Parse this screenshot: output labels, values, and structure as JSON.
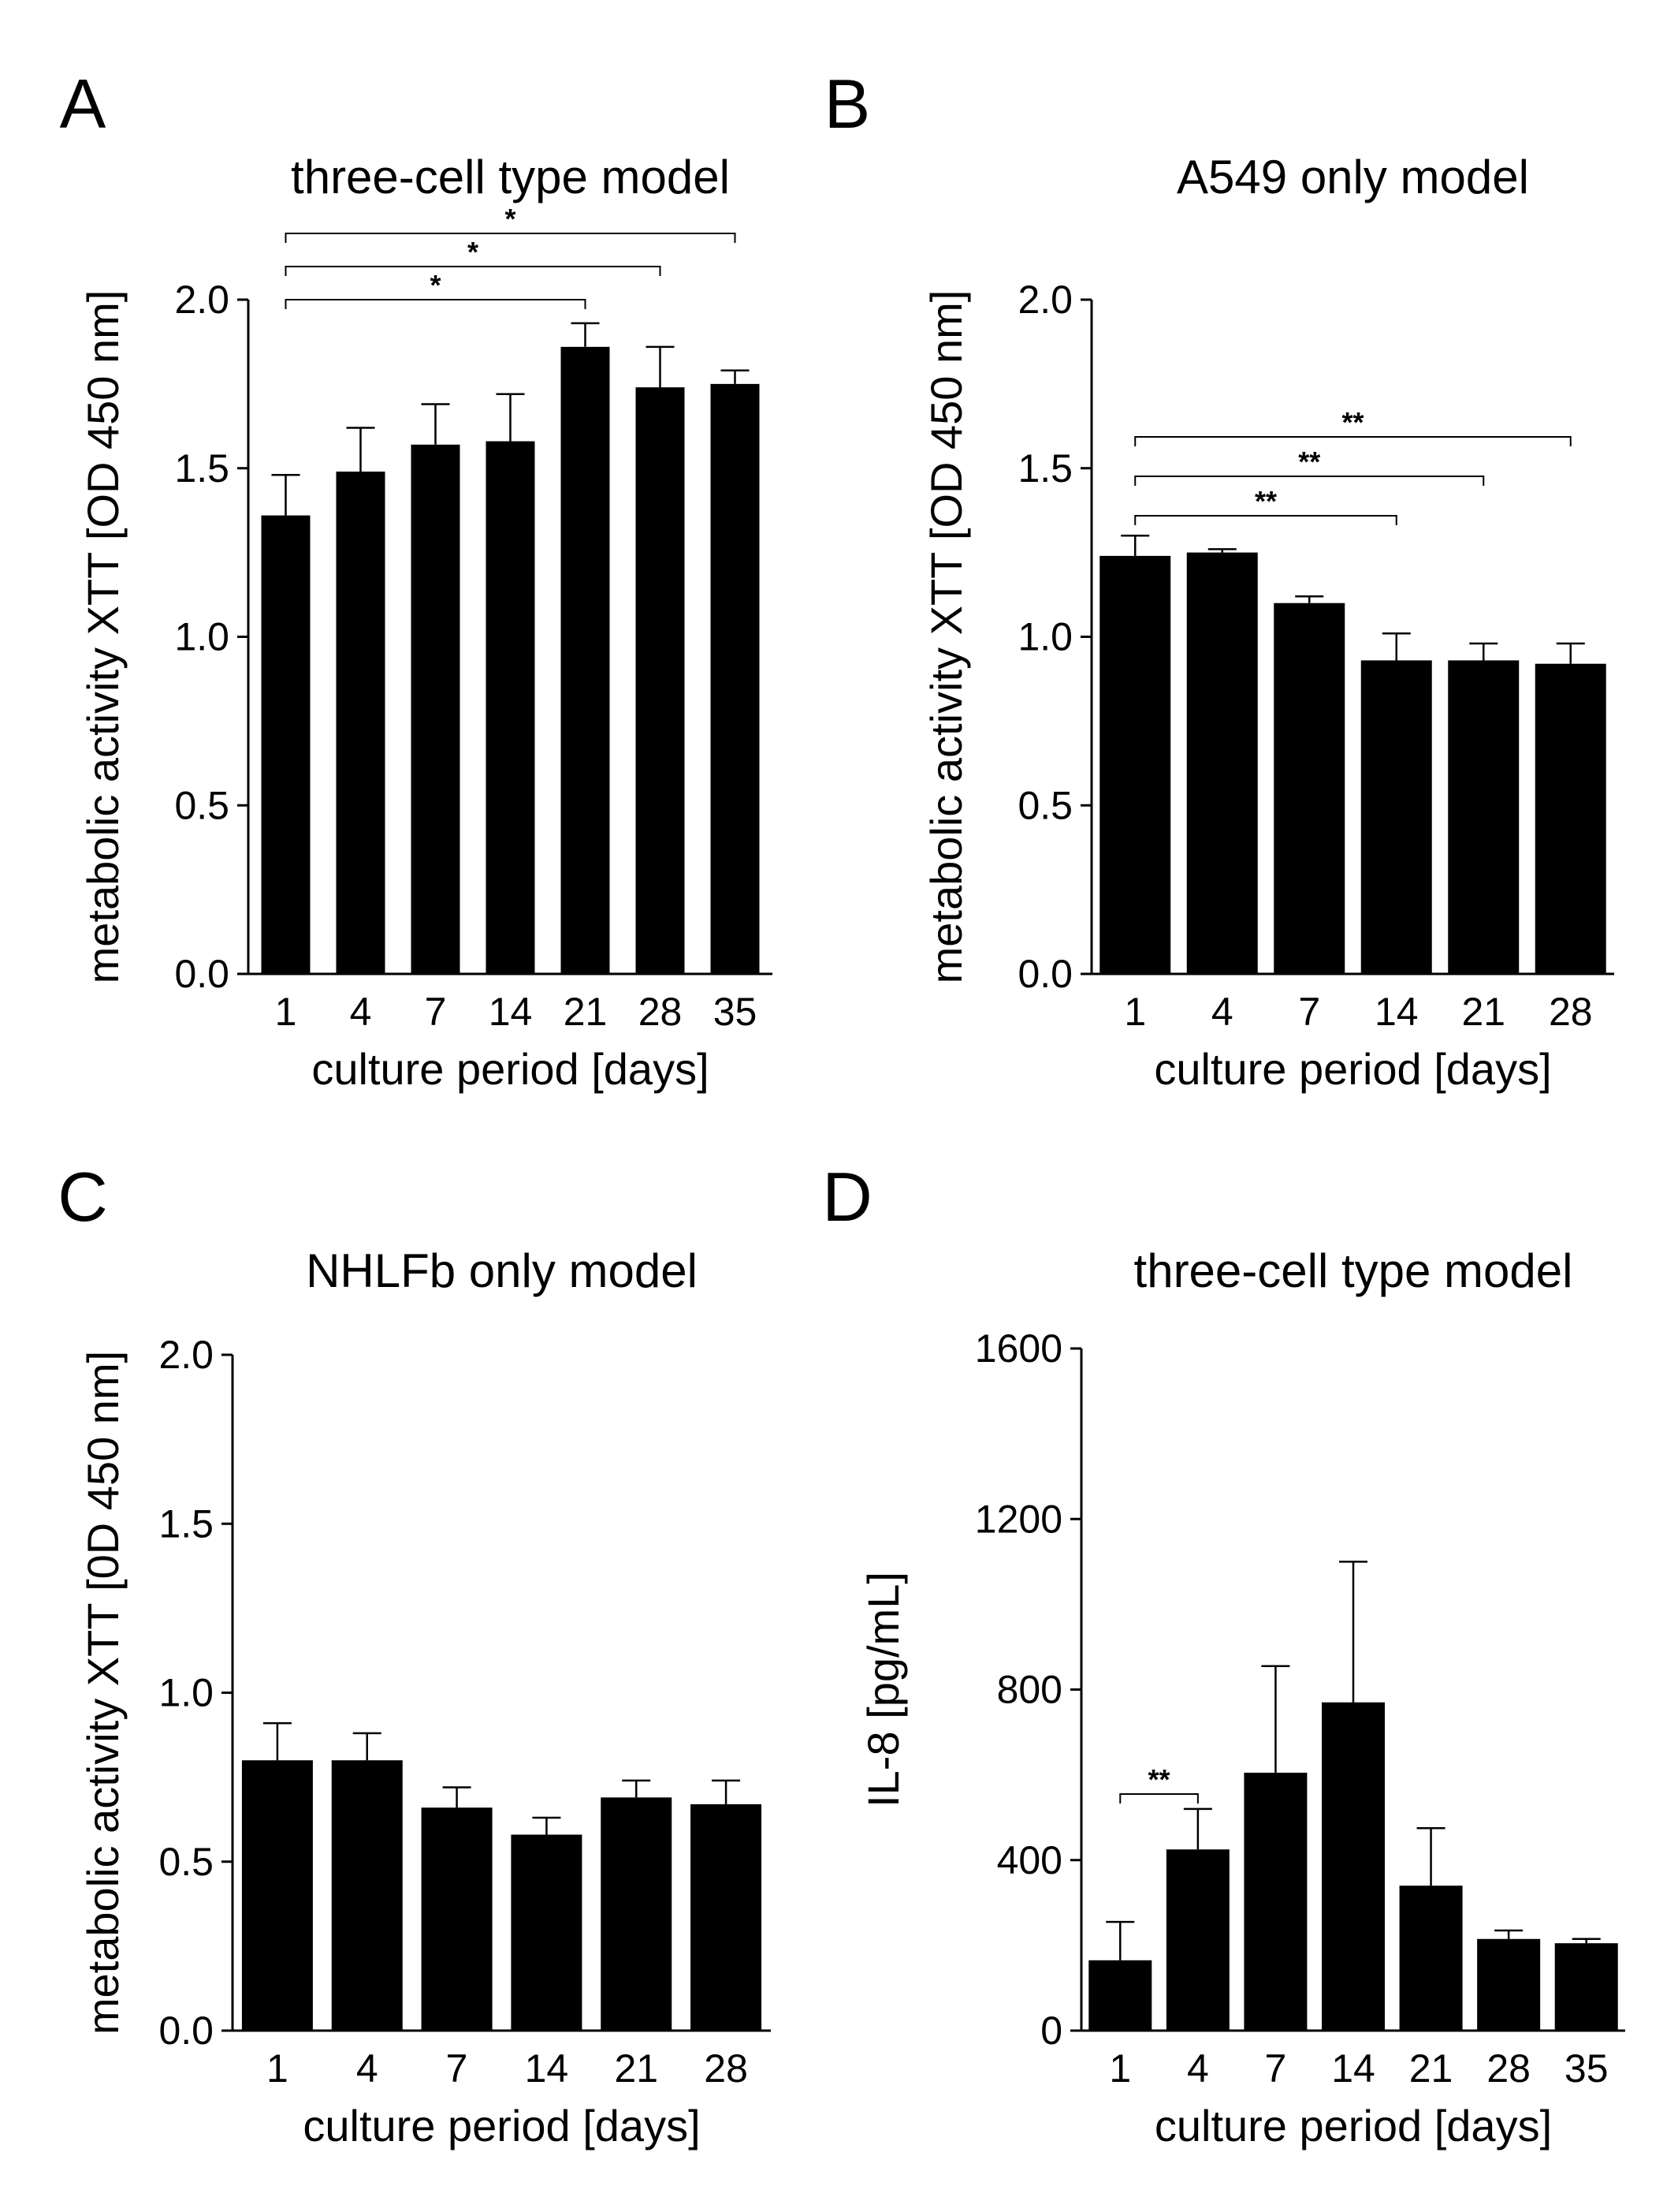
{
  "chart_data": [
    {
      "panel": "A",
      "type": "bar",
      "title": "three-cell type model",
      "xlabel": "culture period [days]",
      "ylabel": "metabolic activity XTT [OD 450 nm]",
      "ylim": [
        0,
        2.0
      ],
      "yticks": [
        0.0,
        0.5,
        1.0,
        1.5,
        2.0
      ],
      "ytick_labels": [
        "0.0",
        "0.5",
        "1.0",
        "1.5",
        "2.0"
      ],
      "categories": [
        "1",
        "4",
        "7",
        "14",
        "21",
        "28",
        "35"
      ],
      "values": [
        1.36,
        1.49,
        1.57,
        1.58,
        1.86,
        1.74,
        1.75
      ],
      "errors": [
        0.12,
        0.13,
        0.12,
        0.14,
        0.07,
        0.12,
        0.04
      ],
      "significance": [
        {
          "from": 0,
          "to": 4,
          "label": "*"
        },
        {
          "from": 0,
          "to": 5,
          "label": "*"
        },
        {
          "from": 0,
          "to": 6,
          "label": "*"
        }
      ]
    },
    {
      "panel": "B",
      "type": "bar",
      "title": "A549 only model",
      "xlabel": "culture period [days]",
      "ylabel": "metabolic activity XTT [OD 450 nm]",
      "ylim": [
        0,
        2.0
      ],
      "yticks": [
        0.0,
        0.5,
        1.0,
        1.5,
        2.0
      ],
      "ytick_labels": [
        "0.0",
        "0.5",
        "1.0",
        "1.5",
        "2.0"
      ],
      "categories": [
        "1",
        "4",
        "7",
        "14",
        "21",
        "28"
      ],
      "values": [
        1.24,
        1.25,
        1.1,
        0.93,
        0.93,
        0.92
      ],
      "errors": [
        0.06,
        0.01,
        0.02,
        0.08,
        0.05,
        0.06
      ],
      "significance": [
        {
          "from": 0,
          "to": 3,
          "label": "**"
        },
        {
          "from": 0,
          "to": 4,
          "label": "**"
        },
        {
          "from": 0,
          "to": 5,
          "label": "**"
        }
      ]
    },
    {
      "panel": "C",
      "type": "bar",
      "title": "NHLFb only model",
      "xlabel": "culture period [days]",
      "ylabel": "metabolic activity XTT [0D 450 nm]",
      "ylim": [
        0,
        2.0
      ],
      "yticks": [
        0.0,
        0.5,
        1.0,
        1.5,
        2.0
      ],
      "ytick_labels": [
        "0.0",
        "0.5",
        "1.0",
        "1.5",
        "2.0"
      ],
      "categories": [
        "1",
        "4",
        "7",
        "14",
        "21",
        "28"
      ],
      "values": [
        0.8,
        0.8,
        0.66,
        0.58,
        0.69,
        0.67
      ],
      "errors": [
        0.11,
        0.08,
        0.06,
        0.05,
        0.05,
        0.07
      ],
      "significance": []
    },
    {
      "panel": "D",
      "type": "bar",
      "title": "three-cell type model",
      "xlabel": "culture period [days]",
      "ylabel": "IL-8 [pg/mL]",
      "ylim": [
        0,
        1600
      ],
      "yticks": [
        0,
        400,
        800,
        1200,
        1600
      ],
      "ytick_labels": [
        "0",
        "400",
        "800",
        "1200",
        "1600"
      ],
      "categories": [
        "1",
        "4",
        "7",
        "14",
        "21",
        "28",
        "35"
      ],
      "values": [
        165,
        425,
        605,
        770,
        340,
        215,
        205
      ],
      "errors": [
        90,
        95,
        250,
        330,
        135,
        20,
        10
      ],
      "significance": [
        {
          "from": 0,
          "to": 1,
          "label": "**"
        }
      ]
    }
  ]
}
